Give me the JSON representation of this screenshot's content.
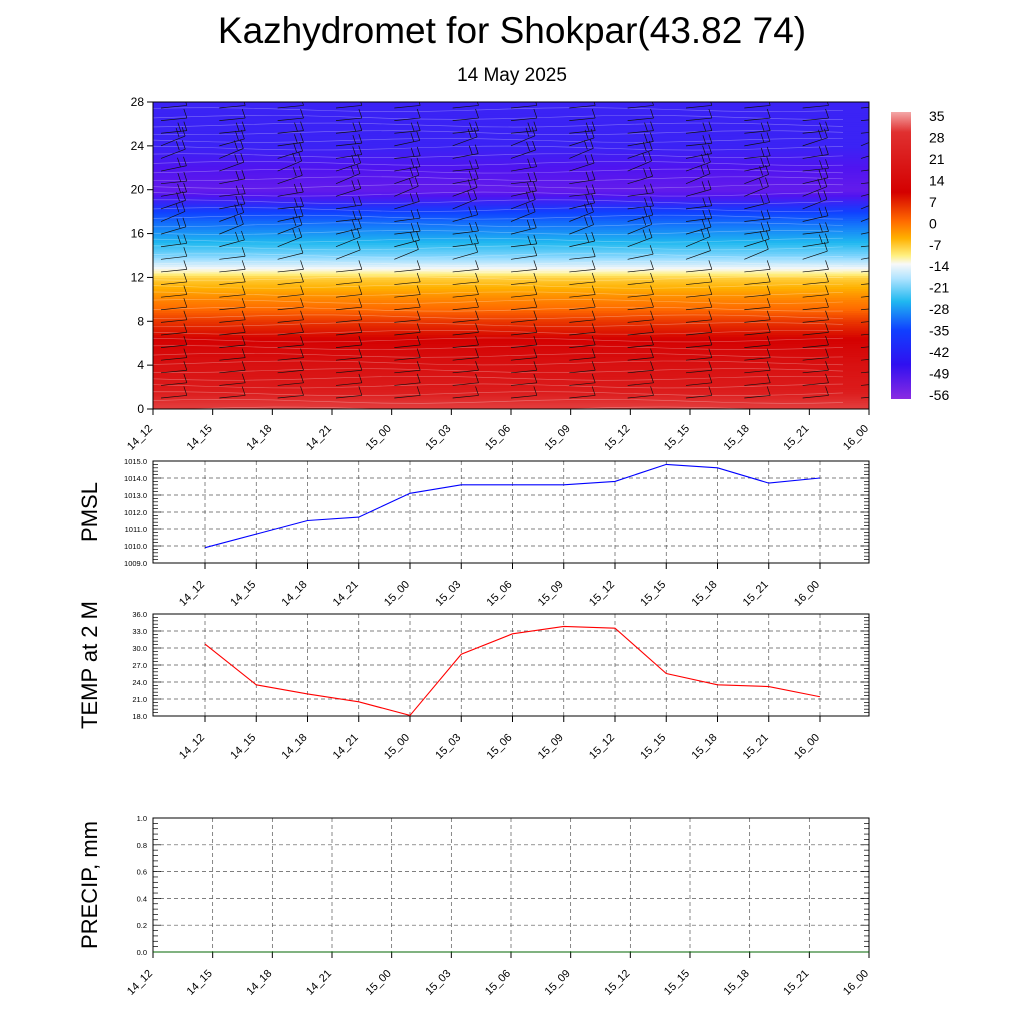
{
  "title": "Kazhydromet for Shokpar(43.82 74)",
  "subtitle": "14 May 2025",
  "time_labels": [
    "14_12",
    "14_15",
    "14_18",
    "14_21",
    "15_00",
    "15_03",
    "15_06",
    "15_09",
    "15_12",
    "15_15",
    "15_18",
    "15_21",
    "16_00"
  ],
  "colors": {
    "pmsl_line": "#0000ff",
    "temp_line": "#ff0000",
    "precip_line": "#006400",
    "grid": "#555555"
  },
  "chart_data": [
    {
      "type": "heatmap",
      "title": "",
      "ylabel": "",
      "y_ticks": [
        0,
        4,
        8,
        12,
        16,
        20,
        24,
        28
      ],
      "ylim": [
        0,
        28
      ],
      "colorbar_labels": [
        "35",
        "28",
        "21",
        "14",
        "7",
        "0",
        "-7",
        "-14",
        "-21",
        "-28",
        "-35",
        "-42",
        "-49",
        "-56"
      ],
      "temperature_profile": [
        {
          "level": 0,
          "value": 30
        },
        {
          "level": 2,
          "value": 26
        },
        {
          "level": 4,
          "value": 24
        },
        {
          "level": 6,
          "value": 21
        },
        {
          "level": 8,
          "value": 16
        },
        {
          "level": 10,
          "value": 9
        },
        {
          "level": 12,
          "value": 0
        },
        {
          "level": 13,
          "value": -12
        },
        {
          "level": 14,
          "value": -22
        },
        {
          "level": 16,
          "value": -35
        },
        {
          "level": 18,
          "value": -48
        },
        {
          "level": 20,
          "value": -56
        },
        {
          "level": 22,
          "value": -54
        },
        {
          "level": 24,
          "value": -52
        },
        {
          "level": 28,
          "value": -52
        }
      ],
      "colorscale": "blue-cyan-yellow-red",
      "wind_barbs": true
    },
    {
      "type": "line",
      "ylabel": "PMSL",
      "ylim": [
        1009.0,
        1015.0
      ],
      "y_ticks": [
        "1009.0",
        "1010.0",
        "1011.0",
        "1012.0",
        "1013.0",
        "1014.0",
        "1015.0"
      ],
      "series": [
        {
          "values": [
            1009.9,
            1010.7,
            1011.5,
            1011.7,
            1013.1,
            1013.6,
            1013.6,
            1013.6,
            1013.8,
            1014.8,
            1014.6,
            1013.7,
            1014.0
          ]
        }
      ]
    },
    {
      "type": "line",
      "ylabel": "TEMP at 2 M",
      "ylim": [
        18.0,
        36.0
      ],
      "y_ticks": [
        "18.0",
        "21.0",
        "24.0",
        "27.0",
        "30.0",
        "33.0",
        "36.0"
      ],
      "series": [
        {
          "values": [
            30.7,
            23.5,
            21.9,
            20.5,
            18.1,
            28.9,
            32.5,
            33.8,
            33.5,
            25.5,
            23.5,
            23.2,
            21.4
          ]
        }
      ]
    },
    {
      "type": "line",
      "ylabel": "PRECIP, mm",
      "ylim": [
        0.0,
        1.0
      ],
      "y_ticks": [
        "0.0",
        "0.2",
        "0.4",
        "0.6",
        "0.8",
        "1.0"
      ],
      "series": [
        {
          "values": [
            0,
            0,
            0,
            0,
            0,
            0,
            0,
            0,
            0,
            0,
            0,
            0,
            0
          ]
        }
      ]
    }
  ]
}
